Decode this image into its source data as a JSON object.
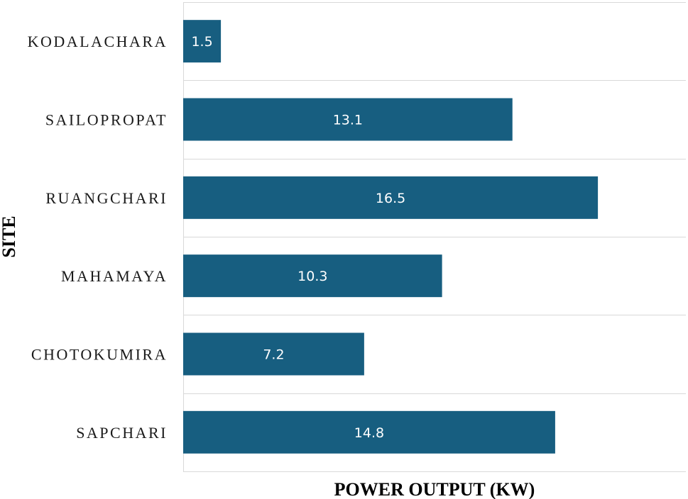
{
  "chart_data": {
    "type": "bar",
    "orientation": "horizontal",
    "categories": [
      "KODALACHARA",
      "SAILOPROPAT",
      "RUANGCHARI",
      "MAHAMAYA",
      "CHOTOKUMIRA",
      "SAPCHARI"
    ],
    "values": [
      1.5,
      13.1,
      16.5,
      10.3,
      7.2,
      14.8
    ],
    "xlabel": "POWER OUTPUT (KW)",
    "ylabel": "SITE",
    "xlim": [
      0,
      20
    ],
    "grid": true,
    "legend": "none",
    "colors": {
      "bar": "#175e80",
      "grid": "#d9d9d9",
      "label": "#ffffff"
    }
  }
}
